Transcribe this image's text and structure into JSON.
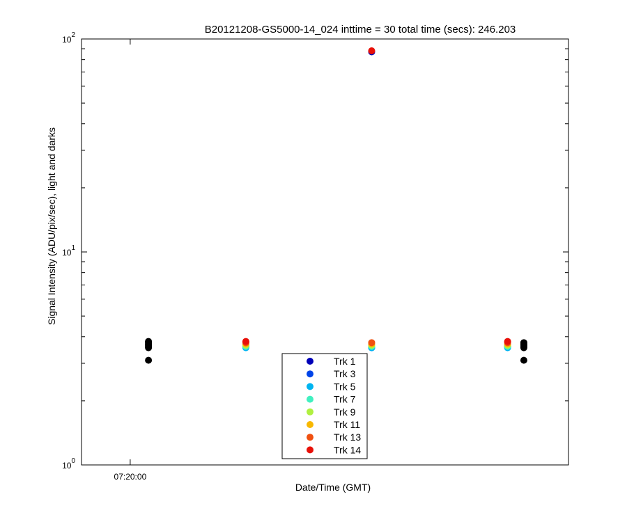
{
  "chart_data": {
    "type": "scatter",
    "title": "B20121208-GS5000-14_024 inttime = 30 total time (secs): 246.203",
    "xlabel": "Date/Time (GMT)",
    "ylabel": "Signal Intensity (ADU/pix/sec), light and darks",
    "yscale": "log",
    "ylim": [
      1,
      100
    ],
    "xlim": [
      "07:19:36",
      "07:23:36"
    ],
    "x_ticks": [
      {
        "x": "07:20:00",
        "label": "07:20:00"
      }
    ],
    "y_ticks": [
      {
        "value": 1,
        "base": "10",
        "exp": "0"
      },
      {
        "value": 10,
        "base": "10",
        "exp": "1"
      },
      {
        "value": 100,
        "base": "10",
        "exp": "2"
      }
    ],
    "grid": false,
    "legend_position": "bottom-center",
    "series": [
      {
        "name": "Trk 1",
        "color": "#0000b8",
        "points": [
          {
            "x": "07:20:57",
            "y": 3.6
          },
          {
            "x": "07:21:59",
            "y": 87
          },
          {
            "x": "07:23:06",
            "y": 3.6
          }
        ]
      },
      {
        "name": "Trk 3",
        "color": "#0044e8",
        "points": [
          {
            "x": "07:20:57",
            "y": 3.6
          },
          {
            "x": "07:21:59",
            "y": 3.55
          },
          {
            "x": "07:23:06",
            "y": 3.6
          }
        ]
      },
      {
        "name": "Trk 5",
        "color": "#00b4f0",
        "points": [
          {
            "x": "07:20:57",
            "y": 3.55
          },
          {
            "x": "07:21:59",
            "y": 3.55
          },
          {
            "x": "07:23:06",
            "y": 3.55
          }
        ]
      },
      {
        "name": "Trk 7",
        "color": "#40f0c0",
        "points": [
          {
            "x": "07:20:57",
            "y": 3.6
          },
          {
            "x": "07:21:59",
            "y": 3.6
          },
          {
            "x": "07:23:06",
            "y": 3.6
          }
        ]
      },
      {
        "name": "Trk 9",
        "color": "#b0f040",
        "points": [
          {
            "x": "07:20:57",
            "y": 3.65
          },
          {
            "x": "07:21:59",
            "y": 3.65
          },
          {
            "x": "07:23:06",
            "y": 3.65
          }
        ]
      },
      {
        "name": "Trk 11",
        "color": "#f8b800",
        "points": [
          {
            "x": "07:20:57",
            "y": 3.7
          },
          {
            "x": "07:21:59",
            "y": 3.7
          },
          {
            "x": "07:23:06",
            "y": 3.7
          }
        ]
      },
      {
        "name": "Trk 13",
        "color": "#f05010",
        "points": [
          {
            "x": "07:20:57",
            "y": 3.75
          },
          {
            "x": "07:21:59",
            "y": 3.75
          },
          {
            "x": "07:23:06",
            "y": 3.75
          }
        ]
      },
      {
        "name": "Trk 14",
        "color": "#e81008",
        "points": [
          {
            "x": "07:20:57",
            "y": 3.8
          },
          {
            "x": "07:21:59",
            "y": 88
          },
          {
            "x": "07:23:06",
            "y": 3.8
          }
        ]
      }
    ],
    "darks": {
      "color": "#000000",
      "points": [
        {
          "x": "07:20:09",
          "y": 3.1
        },
        {
          "x": "07:20:09",
          "y": 3.55
        },
        {
          "x": "07:20:09",
          "y": 3.6
        },
        {
          "x": "07:20:09",
          "y": 3.65
        },
        {
          "x": "07:20:09",
          "y": 3.7
        },
        {
          "x": "07:20:09",
          "y": 3.75
        },
        {
          "x": "07:20:09",
          "y": 3.8
        },
        {
          "x": "07:23:14",
          "y": 3.1
        },
        {
          "x": "07:23:14",
          "y": 3.55
        },
        {
          "x": "07:23:14",
          "y": 3.6
        },
        {
          "x": "07:23:14",
          "y": 3.65
        },
        {
          "x": "07:23:14",
          "y": 3.7
        },
        {
          "x": "07:23:14",
          "y": 3.75
        }
      ]
    }
  }
}
